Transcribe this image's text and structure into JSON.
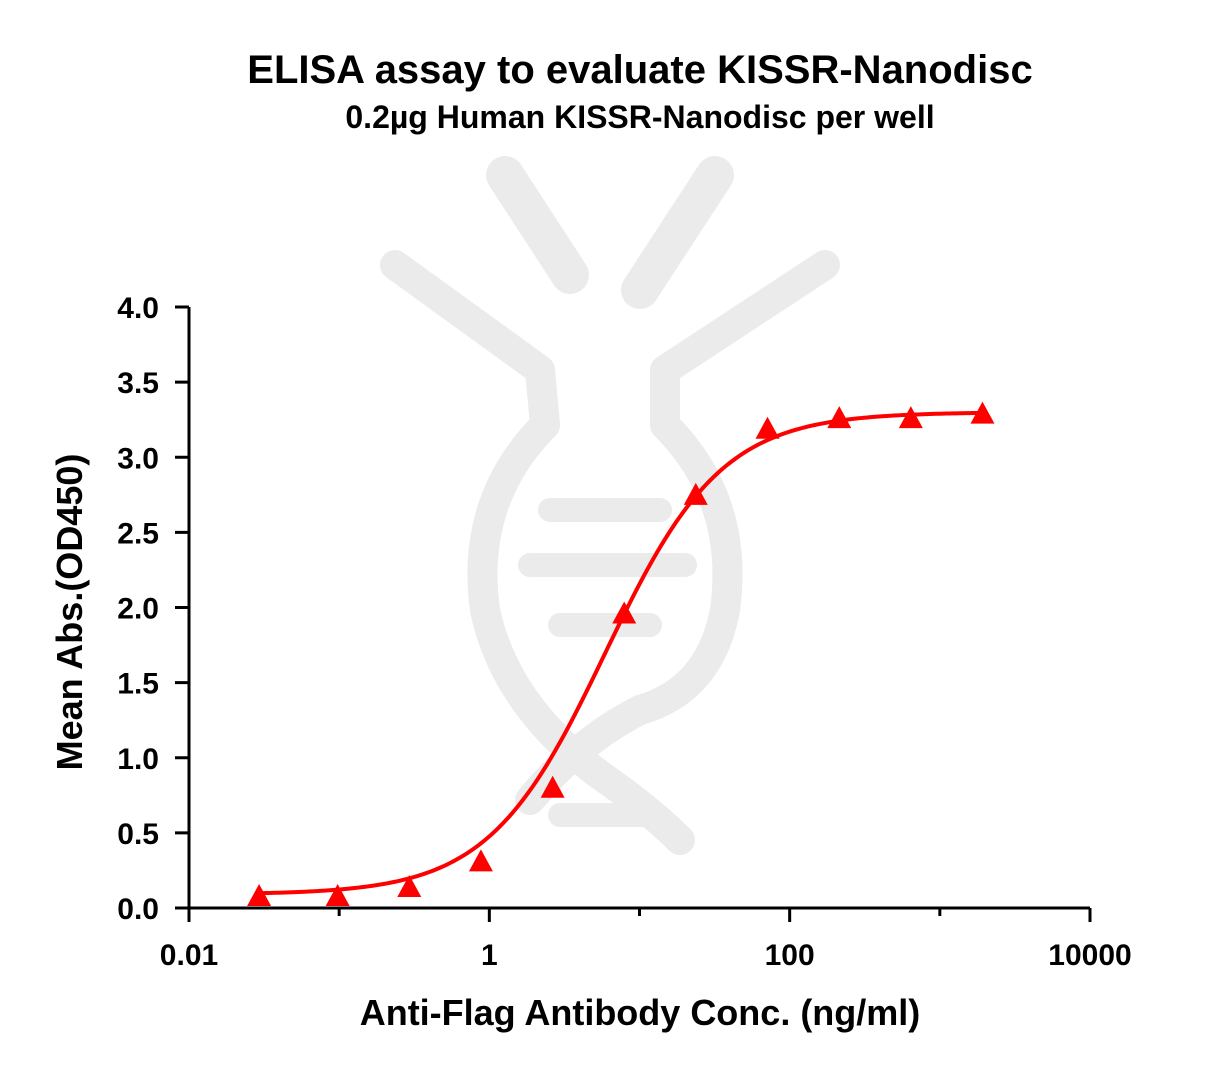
{
  "chart_data": {
    "type": "line",
    "title": "ELISA assay to evaluate KISSR-Nanodisc",
    "subtitle": "0.2µg Human KISSR-Nanodisc per well",
    "xlabel": "Anti-Flag Antibody Conc. (ng/ml)",
    "ylabel": "Mean Abs.(OD450)",
    "x_scale": "log",
    "xlim": [
      0.01,
      10000
    ],
    "ylim": [
      0.0,
      4.0
    ],
    "x_ticks": [
      {
        "value": 0.01,
        "label": "0.01"
      },
      {
        "value": 1,
        "label": "1"
      },
      {
        "value": 100,
        "label": "100"
      },
      {
        "value": 10000,
        "label": "10000"
      }
    ],
    "y_ticks": [
      {
        "value": 0.0,
        "label": "0.0"
      },
      {
        "value": 0.5,
        "label": "0.5"
      },
      {
        "value": 1.0,
        "label": "1.0"
      },
      {
        "value": 1.5,
        "label": "1.5"
      },
      {
        "value": 2.0,
        "label": "2.0"
      },
      {
        "value": 2.5,
        "label": "2.5"
      },
      {
        "value": 3.0,
        "label": "3.0"
      },
      {
        "value": 3.5,
        "label": "3.5"
      },
      {
        "value": 4.0,
        "label": "4.0"
      }
    ],
    "grid": false,
    "legend": "none",
    "marker": "triangle",
    "color": "#ff0000",
    "series": [
      {
        "x": [
          0.0293,
          0.0977,
          0.293,
          0.879,
          2.64,
          7.91,
          23.7,
          71.2,
          214,
          641,
          1923
        ],
        "y": [
          0.08,
          0.08,
          0.14,
          0.31,
          0.8,
          1.96,
          2.75,
          3.19,
          3.26,
          3.26,
          3.29
        ]
      }
    ],
    "fit": {
      "model": "4PL",
      "bottom": 0.09,
      "top": 3.3,
      "ec50": 5.9,
      "hill": 1.12
    }
  }
}
